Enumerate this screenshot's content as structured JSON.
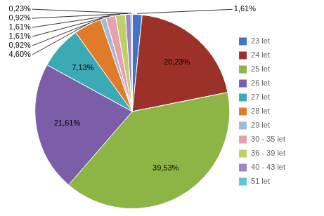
{
  "chart_data": {
    "type": "pie",
    "categories": [
      "23 let",
      "24 let",
      "25 let",
      "26 let",
      "27 let",
      "28 let",
      "29 let",
      "30 - 35 let",
      "36 - 39 let",
      "40 - 43 let",
      "51 let"
    ],
    "values": [
      1.61,
      20.23,
      39.53,
      21.61,
      7.13,
      4.6,
      0.92,
      1.61,
      1.61,
      0.92,
      0.23
    ],
    "value_labels": [
      "1,61%",
      "20,23%",
      "39,53%",
      "21,61%",
      "7,13%",
      "4,60%",
      "0,92%",
      "1,61%",
      "1,61%",
      "0,92%",
      "0,23%"
    ],
    "colors": [
      "#4472C4",
      "#9B3128",
      "#8DB545",
      "#7B5EA7",
      "#3BAAB5",
      "#E07B2A",
      "#9FBCD4",
      "#E8A0AA",
      "#BFCF6A",
      "#9B87C4",
      "#5DC8D4"
    ],
    "data_labels": true,
    "legend": "right"
  }
}
